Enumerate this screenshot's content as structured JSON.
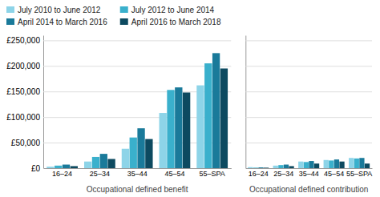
{
  "chart_data": [
    {
      "type": "bar",
      "xlabel": "Occupational defined benefit",
      "categories": [
        "16–24",
        "25–34",
        "35–44",
        "45–54",
        "55–SPA"
      ],
      "series": [
        {
          "name": "July 2010 to June 2012",
          "color": "#8dd4e8",
          "values": [
            3000,
            13000,
            38000,
            108000,
            162000
          ]
        },
        {
          "name": "July 2012 to June 2014",
          "color": "#3ab0cc",
          "values": [
            5000,
            22000,
            60000,
            153000,
            205000
          ]
        },
        {
          "name": "April 2014 to March 2016",
          "color": "#1a7a9a",
          "values": [
            7000,
            28000,
            78000,
            158000,
            225000
          ]
        },
        {
          "name": "April 2016 to March 2018",
          "color": "#0d4a60",
          "values": [
            4000,
            18000,
            57000,
            148000,
            195000
          ]
        }
      ],
      "ylim": [
        0,
        260000
      ],
      "yticks": [
        {
          "value": 0,
          "label": "£0"
        },
        {
          "value": 50000,
          "label": "£50,000"
        },
        {
          "value": 100000,
          "label": "£100,000"
        },
        {
          "value": 150000,
          "label": "£150,000"
        },
        {
          "value": 200000,
          "label": "£200,000"
        },
        {
          "value": 250000,
          "label": "£250,000"
        }
      ],
      "grid": true,
      "legend": "top-left"
    },
    {
      "type": "bar",
      "xlabel": "Occupational defined contribution",
      "categories": [
        "16–24",
        "25–34",
        "35–44",
        "45–54",
        "55–SPA"
      ],
      "series": [
        {
          "color": "#8dd4e8",
          "values": [
            2000,
            5000,
            13000,
            16000,
            20000
          ]
        },
        {
          "color": "#3ab0cc",
          "values": [
            1000,
            6000,
            12000,
            15000,
            19000
          ]
        },
        {
          "color": "#1a7a9a",
          "values": [
            1500,
            7000,
            14000,
            17000,
            20000
          ]
        },
        {
          "color": "#0d4a60",
          "values": [
            1000,
            4000,
            9000,
            13000,
            9000
          ]
        }
      ],
      "ylim": [
        0,
        260000
      ],
      "yticks": [
        0,
        50000,
        100000,
        150000,
        200000,
        250000
      ],
      "grid": true,
      "tick_labels": "x"
    }
  ]
}
